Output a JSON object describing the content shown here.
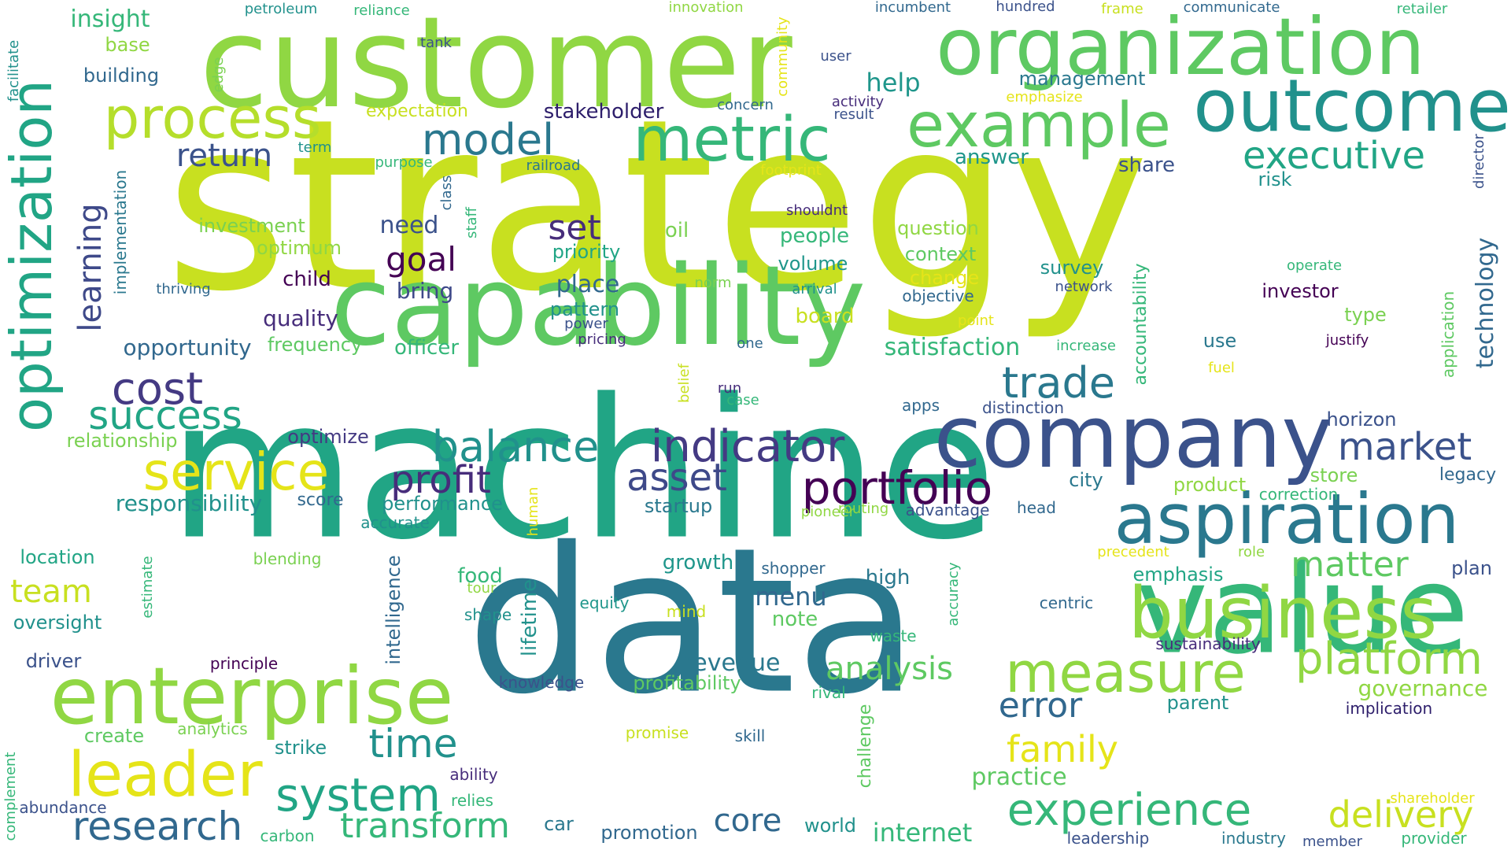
{
  "palette": {
    "yellow": "#c8e020",
    "yellow2": "#e5e419",
    "lime": "#90d743",
    "green": "#5ec962",
    "green2": "#35b779",
    "teal": "#21a585",
    "teal2": "#1f968b",
    "cyan": "#21918c",
    "blue": "#2a788e",
    "blue2": "#31688e",
    "indigo": "#3b528b",
    "indigo2": "#443a83",
    "purple": "#472d7b",
    "dark": "#440154"
  },
  "words": [
    {
      "text": "strategy",
      "color": "#c8e020"
    },
    {
      "text": "machine",
      "color": "#21a585"
    },
    {
      "text": "data",
      "color": "#2a788e"
    },
    {
      "text": "customer",
      "color": "#90d743"
    },
    {
      "text": "capability",
      "color": "#5ec962"
    },
    {
      "text": "organization",
      "color": "#5ec962"
    },
    {
      "text": "value",
      "color": "#35b779"
    },
    {
      "text": "company",
      "color": "#3b528b"
    },
    {
      "text": "optimization",
      "color": "#21a585"
    },
    {
      "text": "enterprise",
      "color": "#90d743"
    },
    {
      "text": "business",
      "color": "#90d743"
    },
    {
      "text": "outcome",
      "color": "#21918c"
    },
    {
      "text": "aspiration",
      "color": "#2a788e"
    },
    {
      "text": "example",
      "color": "#5ec962"
    },
    {
      "text": "metric",
      "color": "#35b779"
    },
    {
      "text": "leader",
      "color": "#e5e419"
    },
    {
      "text": "measure",
      "color": "#90d743"
    },
    {
      "text": "process",
      "color": "#b5de2b"
    },
    {
      "text": "service",
      "color": "#e5e419"
    },
    {
      "text": "portfolio",
      "color": "#440154"
    },
    {
      "text": "indicator",
      "color": "#443a83"
    },
    {
      "text": "platform",
      "color": "#90d743"
    },
    {
      "text": "system",
      "color": "#21a585"
    },
    {
      "text": "experience",
      "color": "#35b779"
    },
    {
      "text": "research",
      "color": "#31688e"
    },
    {
      "text": "trade",
      "color": "#2a788e"
    },
    {
      "text": "balance",
      "color": "#21918c"
    },
    {
      "text": "model",
      "color": "#2a788e"
    },
    {
      "text": "executive",
      "color": "#21a585"
    },
    {
      "text": "market",
      "color": "#3b528b"
    },
    {
      "text": "success",
      "color": "#21a585"
    },
    {
      "text": "cost",
      "color": "#443a83"
    },
    {
      "text": "profit",
      "color": "#472d7b"
    },
    {
      "text": "asset",
      "color": "#3e4989"
    },
    {
      "text": "delivery",
      "color": "#c8e020"
    },
    {
      "text": "family",
      "color": "#e5e419"
    },
    {
      "text": "matter",
      "color": "#5ec962"
    },
    {
      "text": "transform",
      "color": "#35b779"
    },
    {
      "text": "time",
      "color": "#21918c"
    },
    {
      "text": "error",
      "color": "#31688e"
    },
    {
      "text": "analysis",
      "color": "#5ec962"
    },
    {
      "text": "goal",
      "color": "#440154"
    },
    {
      "text": "set",
      "color": "#472d7b"
    },
    {
      "text": "return",
      "color": "#3b528b"
    },
    {
      "text": "team",
      "color": "#c8e020"
    },
    {
      "text": "core",
      "color": "#31688e"
    },
    {
      "text": "internet",
      "color": "#35b779"
    },
    {
      "text": "technology",
      "color": "#31688e"
    },
    {
      "text": "learning",
      "color": "#3e4989"
    },
    {
      "text": "insight",
      "color": "#35b779"
    },
    {
      "text": "help",
      "color": "#1f968b"
    },
    {
      "text": "menu",
      "color": "#31688e"
    },
    {
      "text": "revenue",
      "color": "#2a788e"
    },
    {
      "text": "governance",
      "color": "#90d743"
    },
    {
      "text": "practice",
      "color": "#5ec962"
    },
    {
      "text": "responsibility",
      "color": "#21918c"
    },
    {
      "text": "satisfaction",
      "color": "#35b779"
    },
    {
      "text": "place",
      "color": "#31688e"
    },
    {
      "text": "need",
      "color": "#3b528b"
    },
    {
      "text": "bring",
      "color": "#3e4989"
    },
    {
      "text": "management",
      "color": "#2a788e"
    },
    {
      "text": "stakeholder",
      "color": "#2d1e6b"
    },
    {
      "text": "answer",
      "color": "#1f968b"
    },
    {
      "text": "share",
      "color": "#3b528b"
    },
    {
      "text": "opportunity",
      "color": "#31688e"
    },
    {
      "text": "quality",
      "color": "#472d7b"
    },
    {
      "text": "officer",
      "color": "#35b779"
    },
    {
      "text": "frequency",
      "color": "#5ec962"
    },
    {
      "text": "relationship",
      "color": "#7ad151"
    },
    {
      "text": "optimize",
      "color": "#443a83"
    },
    {
      "text": "investment",
      "color": "#7ad151"
    },
    {
      "text": "optimum",
      "color": "#90d743"
    },
    {
      "text": "child",
      "color": "#440154"
    },
    {
      "text": "pattern",
      "color": "#21918c"
    },
    {
      "text": "priority",
      "color": "#21a585"
    },
    {
      "text": "oil",
      "color": "#7ad151"
    },
    {
      "text": "people",
      "color": "#35b779"
    },
    {
      "text": "volume",
      "color": "#1f968b"
    },
    {
      "text": "question",
      "color": "#90d743"
    },
    {
      "text": "context",
      "color": "#5ec962"
    },
    {
      "text": "change",
      "color": "#e5e419"
    },
    {
      "text": "objective",
      "color": "#31688e"
    },
    {
      "text": "board",
      "color": "#c8e020"
    },
    {
      "text": "survey",
      "color": "#21918c"
    },
    {
      "text": "network",
      "color": "#3b528b"
    },
    {
      "text": "investor",
      "color": "#440154"
    },
    {
      "text": "type",
      "color": "#7ad151"
    },
    {
      "text": "use",
      "color": "#2a788e"
    },
    {
      "text": "risk",
      "color": "#21918c"
    },
    {
      "text": "horizon",
      "color": "#3b528b"
    },
    {
      "text": "legacy",
      "color": "#31688e"
    },
    {
      "text": "store",
      "color": "#7ad151"
    },
    {
      "text": "product",
      "color": "#90d743"
    },
    {
      "text": "city",
      "color": "#2a788e"
    },
    {
      "text": "head",
      "color": "#31688e"
    },
    {
      "text": "advantage",
      "color": "#3b528b"
    },
    {
      "text": "startup",
      "color": "#2a788e"
    },
    {
      "text": "performance",
      "color": "#21918c"
    },
    {
      "text": "score",
      "color": "#31688e"
    },
    {
      "text": "accurate",
      "color": "#21918c"
    },
    {
      "text": "emphasis",
      "color": "#21a585"
    },
    {
      "text": "plan",
      "color": "#3b528b"
    },
    {
      "text": "centric",
      "color": "#31688e"
    },
    {
      "text": "sustainability",
      "color": "#472d7b"
    },
    {
      "text": "parent",
      "color": "#21918c"
    },
    {
      "text": "implication",
      "color": "#2d1e6b"
    },
    {
      "text": "growth",
      "color": "#1f968b"
    },
    {
      "text": "shopper",
      "color": "#31688e"
    },
    {
      "text": "high",
      "color": "#2a788e"
    },
    {
      "text": "note",
      "color": "#5ec962"
    },
    {
      "text": "food",
      "color": "#35b779"
    },
    {
      "text": "tour",
      "color": "#90d743"
    },
    {
      "text": "shape",
      "color": "#21918c"
    },
    {
      "text": "equity",
      "color": "#1f968b"
    },
    {
      "text": "mind",
      "color": "#c8e020"
    },
    {
      "text": "waste",
      "color": "#35b779"
    },
    {
      "text": "location",
      "color": "#21a585"
    },
    {
      "text": "oversight",
      "color": "#21918c"
    },
    {
      "text": "blending",
      "color": "#7ad151"
    },
    {
      "text": "driver",
      "color": "#3b528b"
    },
    {
      "text": "principle",
      "color": "#440154"
    },
    {
      "text": "create",
      "color": "#5ec962"
    },
    {
      "text": "analytics",
      "color": "#7ad151"
    },
    {
      "text": "strike",
      "color": "#21918c"
    },
    {
      "text": "ability",
      "color": "#472d7b"
    },
    {
      "text": "relies",
      "color": "#35b779"
    },
    {
      "text": "abundance",
      "color": "#3b528b"
    },
    {
      "text": "carbon",
      "color": "#35b779"
    },
    {
      "text": "car",
      "color": "#2a788e"
    },
    {
      "text": "promotion",
      "color": "#31688e"
    },
    {
      "text": "world",
      "color": "#21918c"
    },
    {
      "text": "knowledge",
      "color": "#3b528b"
    },
    {
      "text": "profitability",
      "color": "#5ec962"
    },
    {
      "text": "rival",
      "color": "#35b779"
    },
    {
      "text": "promise",
      "color": "#c8e020"
    },
    {
      "text": "skill",
      "color": "#31688e"
    },
    {
      "text": "leadership",
      "color": "#3b528b"
    },
    {
      "text": "industry",
      "color": "#2a788e"
    },
    {
      "text": "member",
      "color": "#3b528b"
    },
    {
      "text": "provider",
      "color": "#35b779"
    },
    {
      "text": "shareholder",
      "color": "#e5e419"
    },
    {
      "text": "precedent",
      "color": "#e5e419"
    },
    {
      "text": "role",
      "color": "#90d743"
    },
    {
      "text": "correction",
      "color": "#35b779"
    },
    {
      "text": "routing",
      "color": "#90d743"
    },
    {
      "text": "pioneer",
      "color": "#90d743"
    },
    {
      "text": "distinction",
      "color": "#3b528b"
    },
    {
      "text": "apps",
      "color": "#31688e"
    },
    {
      "text": "case",
      "color": "#35b779"
    },
    {
      "text": "run",
      "color": "#472d7b"
    },
    {
      "text": "one",
      "color": "#31688e"
    },
    {
      "text": "pricing",
      "color": "#472d7b"
    },
    {
      "text": "power",
      "color": "#3b528b"
    },
    {
      "text": "norm",
      "color": "#7ad151"
    },
    {
      "text": "arrival",
      "color": "#21918c"
    },
    {
      "text": "point",
      "color": "#e5e419"
    },
    {
      "text": "increase",
      "color": "#35b779"
    },
    {
      "text": "justify",
      "color": "#440154"
    },
    {
      "text": "fuel",
      "color": "#e5e419"
    },
    {
      "text": "operate",
      "color": "#35b779"
    },
    {
      "text": "shouldnt",
      "color": "#472d7b"
    },
    {
      "text": "footprint",
      "color": "#e5e419"
    },
    {
      "text": "railroad",
      "color": "#2a788e"
    },
    {
      "text": "purpose",
      "color": "#35b779"
    },
    {
      "text": "term",
      "color": "#21918c"
    },
    {
      "text": "thriving",
      "color": "#31688e"
    },
    {
      "text": "expectation",
      "color": "#c8e020"
    },
    {
      "text": "building",
      "color": "#31688e"
    },
    {
      "text": "base",
      "color": "#90d743"
    },
    {
      "text": "tank",
      "color": "#3b528b"
    },
    {
      "text": "petroleum",
      "color": "#21918c"
    },
    {
      "text": "reliance",
      "color": "#35b779"
    },
    {
      "text": "innovation",
      "color": "#90d743"
    },
    {
      "text": "incumbent",
      "color": "#31688e"
    },
    {
      "text": "hundred",
      "color": "#3b528b"
    },
    {
      "text": "frame",
      "color": "#c8e020"
    },
    {
      "text": "communicate",
      "color": "#31688e"
    },
    {
      "text": "retailer",
      "color": "#35b779"
    },
    {
      "text": "user",
      "color": "#3b528b"
    },
    {
      "text": "concern",
      "color": "#31688e"
    },
    {
      "text": "activity",
      "color": "#472d7b"
    },
    {
      "text": "result",
      "color": "#3b528b"
    },
    {
      "text": "emphasize",
      "color": "#e5e419"
    },
    {
      "text": "director",
      "color": "#3b528b"
    },
    {
      "text": "facilitate",
      "color": "#21918c"
    },
    {
      "text": "edge",
      "color": "#7ad151"
    },
    {
      "text": "community",
      "color": "#e5e419"
    },
    {
      "text": "implementation",
      "color": "#2a788e"
    },
    {
      "text": "class",
      "color": "#31688e"
    },
    {
      "text": "staff",
      "color": "#35b779"
    },
    {
      "text": "accountability",
      "color": "#35b779"
    },
    {
      "text": "application",
      "color": "#5ec962"
    },
    {
      "text": "belief",
      "color": "#c8e020"
    },
    {
      "text": "human",
      "color": "#e5e419"
    },
    {
      "text": "lifetime",
      "color": "#21918c"
    },
    {
      "text": "intelligence",
      "color": "#31688e"
    },
    {
      "text": "estimate",
      "color": "#35b779"
    },
    {
      "text": "accuracy",
      "color": "#35b779"
    },
    {
      "text": "challenge",
      "color": "#5ec962"
    },
    {
      "text": "complement",
      "color": "#35b779"
    }
  ]
}
